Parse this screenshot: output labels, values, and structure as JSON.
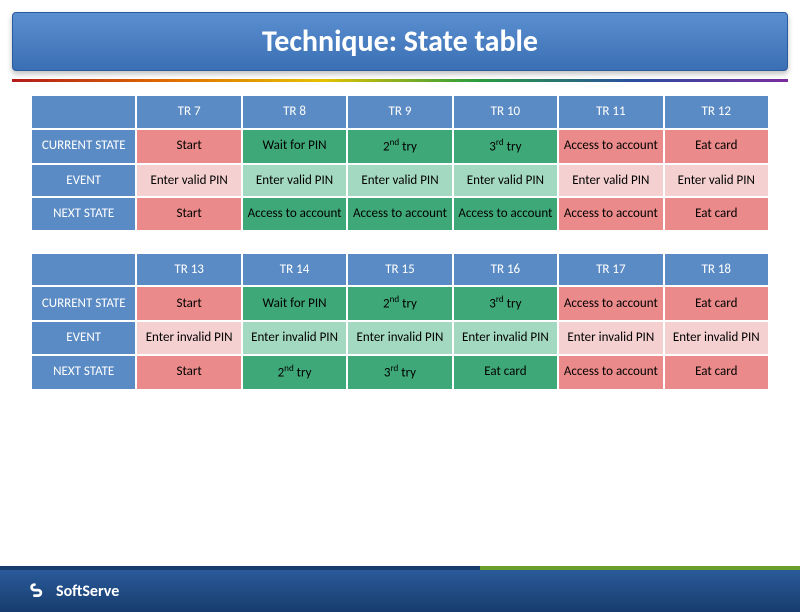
{
  "title": "Technique: State table",
  "brand": "SoftServe",
  "colors": {
    "header_bg": "#5b8bc4",
    "header_fg": "#ffffff",
    "red": "#ea8a8a",
    "pink": "#f5d0d0",
    "green": "#3fa878",
    "lgreen": "#a4d9c1",
    "title_gradient_top": "#5a8fd0",
    "title_gradient_bottom": "#3b6fb4",
    "footer_gradient_top": "#2a5a9a",
    "footer_gradient_bottom": "#173d6e"
  },
  "row_labels": [
    "CURRENT STATE",
    "EVENT",
    "NEXT STATE"
  ],
  "table1": {
    "headers": [
      "TR 7",
      "TR 8",
      "TR 9",
      "TR 10",
      "TR 11",
      "TR 12"
    ],
    "rows": {
      "current": {
        "cells": [
          "Start",
          "Wait for PIN",
          "2<sup>nd</sup> try",
          "3<sup>rd</sup> try",
          "Access to account",
          "Eat card"
        ],
        "classes": [
          "red",
          "green",
          "green",
          "green",
          "red",
          "red"
        ]
      },
      "event": {
        "cells": [
          "Enter valid PIN",
          "Enter valid PIN",
          "Enter valid PIN",
          "Enter valid PIN",
          "Enter valid PIN",
          "Enter valid PIN"
        ],
        "classes": [
          "pink",
          "lgreen",
          "lgreen",
          "lgreen",
          "pink",
          "pink"
        ]
      },
      "next": {
        "cells": [
          "Start",
          "Access to account",
          "Access to account",
          "Access to account",
          "Access to account",
          "Eat card"
        ],
        "classes": [
          "red",
          "green",
          "green",
          "green",
          "red",
          "red"
        ]
      }
    }
  },
  "table2": {
    "headers": [
      "TR 13",
      "TR 14",
      "TR 15",
      "TR 16",
      "TR 17",
      "TR 18"
    ],
    "rows": {
      "current": {
        "cells": [
          "Start",
          "Wait for PIN",
          "2<sup>nd</sup> try",
          "3<sup>rd</sup> try",
          "Access to account",
          "Eat card"
        ],
        "classes": [
          "red",
          "green",
          "green",
          "green",
          "red",
          "red"
        ]
      },
      "event": {
        "cells": [
          "Enter invalid PIN",
          "Enter invalid PIN",
          "Enter invalid PIN",
          "Enter invalid PIN",
          "Enter invalid PIN",
          "Enter invalid PIN"
        ],
        "classes": [
          "pink",
          "lgreen",
          "lgreen",
          "lgreen",
          "pink",
          "pink"
        ]
      },
      "next": {
        "cells": [
          "Start",
          "2<sup>nd</sup> try",
          "3<sup>rd</sup> try",
          "Eat card",
          "Access to account",
          "Eat card"
        ],
        "classes": [
          "red",
          "green",
          "green",
          "green",
          "red",
          "red"
        ]
      }
    }
  }
}
